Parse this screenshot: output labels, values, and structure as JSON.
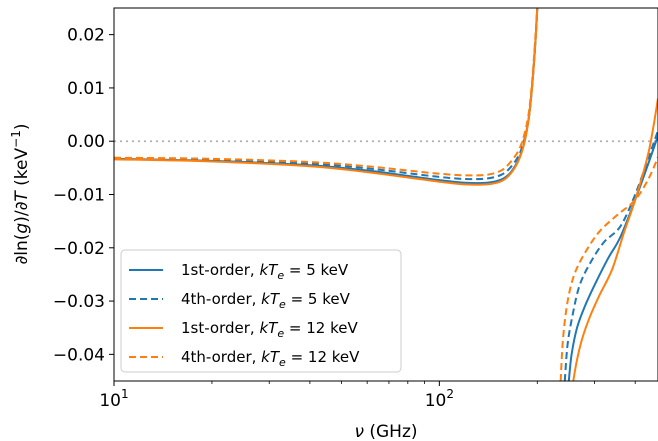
{
  "chart_data": {
    "type": "line",
    "title": "",
    "xlabel": {
      "pre": "",
      "italic": "ν",
      "post": " (GHz)"
    },
    "ylabel": {
      "a": "∂ln(",
      "b": "g",
      "c": ")/∂",
      "d": "T",
      "e": " (keV",
      "sup": "−1",
      "f": ")"
    },
    "xscale": "log",
    "xlim": [
      10,
      470
    ],
    "ylim": [
      -0.045,
      0.025
    ],
    "x_ticks": [
      {
        "value": 10,
        "base": "10",
        "exp": "1"
      },
      {
        "value": 100,
        "base": "10",
        "exp": "2"
      }
    ],
    "y_ticks": [
      {
        "value": -0.04,
        "label": "−0.04"
      },
      {
        "value": -0.03,
        "label": "−0.03"
      },
      {
        "value": -0.02,
        "label": "−0.02"
      },
      {
        "value": -0.01,
        "label": "−0.01"
      },
      {
        "value": 0.0,
        "label": "0.00"
      },
      {
        "value": 0.01,
        "label": "0.01"
      },
      {
        "value": 0.02,
        "label": "0.02"
      }
    ],
    "reference_line": {
      "y": 0.0,
      "style": "dotted",
      "color": "#b0b0b0"
    },
    "grid": false,
    "legend_position": "lower-left",
    "series": [
      {
        "name": {
          "pre": "1st-order, ",
          "k": "kT",
          "sub": "e",
          "post": " = 5 keV"
        },
        "color": "#1f77b4",
        "dash": "solid",
        "branch1": {
          "x": [
            10,
            20,
            40,
            60,
            80,
            100,
            120,
            140,
            155,
            165,
            175,
            182,
            188,
            192,
            195,
            198,
            200
          ],
          "y": [
            -0.0033,
            -0.0037,
            -0.0045,
            -0.0055,
            -0.0065,
            -0.0073,
            -0.0078,
            -0.0078,
            -0.0072,
            -0.006,
            -0.0035,
            -0.0005,
            0.004,
            0.009,
            0.014,
            0.02,
            0.025
          ]
        },
        "branch2": {
          "x": [
            250,
            255,
            265,
            280,
            300,
            330,
            360,
            400,
            440,
            470
          ],
          "y": [
            -0.045,
            -0.04,
            -0.035,
            -0.031,
            -0.027,
            -0.022,
            -0.018,
            -0.011,
            -0.004,
            0.001
          ]
        }
      },
      {
        "name": {
          "pre": "4th-order, ",
          "k": "kT",
          "sub": "e",
          "post": " = 5 keV"
        },
        "color": "#1f77b4",
        "dash": "dashed",
        "branch1": {
          "x": [
            10,
            20,
            40,
            60,
            80,
            100,
            120,
            140,
            155,
            165,
            175,
            182,
            188,
            192,
            195,
            198,
            200
          ],
          "y": [
            -0.0032,
            -0.0035,
            -0.0042,
            -0.0051,
            -0.006,
            -0.0067,
            -0.0071,
            -0.007,
            -0.0063,
            -0.005,
            -0.0028,
            0.0,
            0.004,
            0.009,
            0.014,
            0.02,
            0.025
          ]
        },
        "branch2": {
          "x": [
            243,
            248,
            258,
            270,
            290,
            320,
            360,
            400,
            440,
            470
          ],
          "y": [
            -0.045,
            -0.038,
            -0.032,
            -0.027,
            -0.023,
            -0.019,
            -0.016,
            -0.01,
            -0.003,
            0.002
          ]
        }
      },
      {
        "name": {
          "pre": "1st-order, ",
          "k": "kT",
          "sub": "e",
          "post": " = 12 keV"
        },
        "color": "#ff7f0e",
        "dash": "solid",
        "branch1": {
          "x": [
            10,
            20,
            40,
            60,
            80,
            100,
            120,
            140,
            155,
            165,
            175,
            182,
            188,
            192,
            195,
            198,
            200
          ],
          "y": [
            -0.0034,
            -0.0038,
            -0.0047,
            -0.0058,
            -0.0068,
            -0.0076,
            -0.0081,
            -0.0081,
            -0.0075,
            -0.0062,
            -0.0037,
            -0.0006,
            0.004,
            0.009,
            0.014,
            0.02,
            0.025
          ]
        },
        "branch2": {
          "x": [
            258,
            265,
            275,
            290,
            310,
            340,
            370,
            400,
            440,
            470
          ],
          "y": [
            -0.045,
            -0.041,
            -0.037,
            -0.033,
            -0.029,
            -0.024,
            -0.017,
            -0.011,
            -0.002,
            0.008
          ]
        }
      },
      {
        "name": {
          "pre": "4th-order, ",
          "k": "kT",
          "sub": "e",
          "post": " = 12 keV"
        },
        "color": "#ff7f0e",
        "dash": "dashed",
        "branch1": {
          "x": [
            10,
            20,
            40,
            60,
            80,
            100,
            120,
            140,
            155,
            165,
            175,
            182,
            188,
            192,
            195,
            198,
            200
          ],
          "y": [
            -0.0031,
            -0.0033,
            -0.0039,
            -0.0047,
            -0.0055,
            -0.0061,
            -0.0064,
            -0.0063,
            -0.0055,
            -0.004,
            -0.0018,
            0.001,
            0.005,
            0.01,
            0.015,
            0.021,
            0.025
          ]
        },
        "branch2": {
          "x": [
            236,
            240,
            248,
            260,
            280,
            310,
            350,
            400,
            440,
            470
          ],
          "y": [
            -0.045,
            -0.037,
            -0.03,
            -0.025,
            -0.021,
            -0.017,
            -0.014,
            -0.011,
            -0.007,
            -0.003
          ]
        }
      }
    ]
  }
}
